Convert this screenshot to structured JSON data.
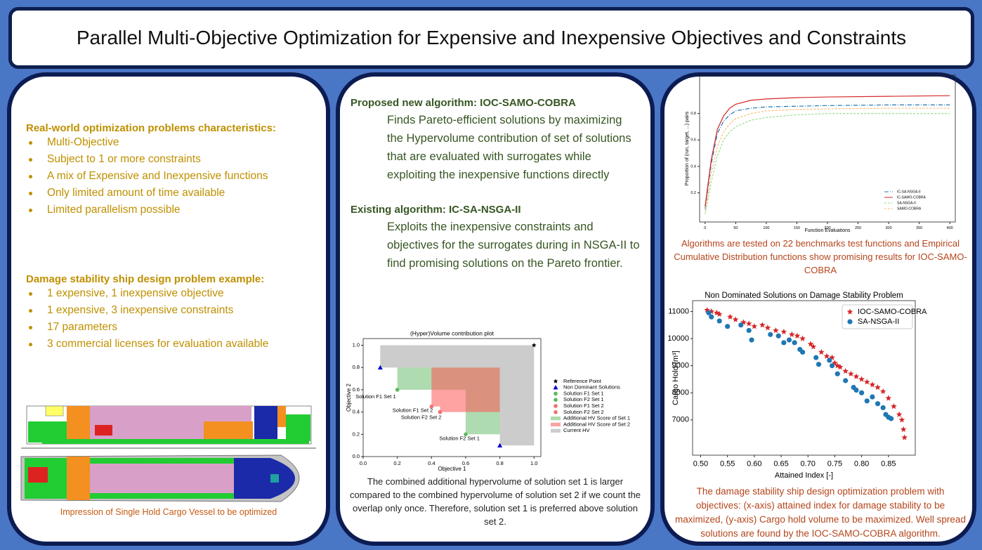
{
  "header": {
    "title": "Parallel Multi-Objective Optimization for Expensive and Inexpensive Objectives and Constraints"
  },
  "left": {
    "sections": [
      {
        "heading": "Real-world optimization problems characteristics:",
        "items": [
          "Multi-Objective",
          "Subject to 1 or more constraints",
          "A mix of Expensive and Inexpensive functions",
          "Only limited amount of time available",
          "Limited parallelism possible"
        ]
      },
      {
        "heading": "Damage stability ship design problem example:",
        "items": [
          "1 expensive, 1 inexpensive objective",
          "1 expensive, 3 inexpensive constraints",
          "17 parameters",
          "3 commercial licenses for evaluation available"
        ]
      }
    ],
    "caption": "Impression of Single Hold Cargo Vessel to be optimized"
  },
  "middle": {
    "sections": [
      {
        "heading": "Proposed new algorithm: IOC-SAMO-COBRA",
        "text": "Finds Pareto-efficient solutions by maximizing the Hypervolume contribution of set of solutions that are evaluated with surrogates while exploiting the inexpensive functions directly"
      },
      {
        "heading": "Existing algorithm: IC-SA-NSGA-II",
        "text": "Exploits the inexpensive constraints and objectives for the surrogates during in NSGA-II to find promising solutions on the Pareto frontier."
      }
    ],
    "caption": "The combined additional hypervolume of solution set 1 is larger compared to the combined hypervolume of solution set 2 if we count the overlap only once. Therefore, solution set 1 is preferred above solution set 2."
  },
  "right": {
    "captions": [
      "Algorithms are tested on 22 benchmarks test functions and Empirical Cumulative Distribution functions show promising results for IOC-SAMO-COBRA",
      "The damage stability ship design optimization problem with objectives: (x-axis) attained index for damage stability to be maximized, (y-axis) Cargo hold volume to be maximized. Well spread solutions are found by the IOC-SAMO-COBRA algorithm."
    ]
  },
  "chart_data": [
    {
      "type": "line",
      "xlabel": "Function Evaluations",
      "ylabel": "Proportion of (run, target, ...) pairs",
      "legend": "lower right",
      "x": [
        0,
        10,
        20,
        30,
        40,
        50,
        75,
        100,
        150,
        200,
        300,
        400
      ],
      "xlim": [
        -9,
        409
      ],
      "xticks": [
        0,
        50,
        100,
        150,
        200,
        250,
        300,
        350,
        400
      ],
      "ylim": [
        -0.02,
        1.09
      ],
      "yticks": [
        0.2,
        0.4,
        0.6,
        0.8
      ],
      "series": [
        {
          "name": "IC-SA-NSGA-II",
          "color": "#1f77b4",
          "linestyle": "dashdot",
          "values": [
            0.08,
            0.42,
            0.65,
            0.74,
            0.79,
            0.82,
            0.84,
            0.85,
            0.855,
            0.86,
            0.865,
            0.865
          ]
        },
        {
          "name": "IC-SAMO-COBRA",
          "color": "#d62728",
          "linestyle": "solid",
          "values": [
            0.1,
            0.45,
            0.68,
            0.78,
            0.84,
            0.87,
            0.9,
            0.91,
            0.92,
            0.925,
            0.93,
            0.935
          ]
        },
        {
          "name": "SA-NSGA-II",
          "color": "#98df8a",
          "linestyle": "dashed",
          "values": [
            0.04,
            0.28,
            0.48,
            0.6,
            0.66,
            0.7,
            0.75,
            0.77,
            0.79,
            0.8,
            0.8,
            0.8
          ]
        },
        {
          "name": "SAMO-COBRA",
          "color": "#ffbb78",
          "linestyle": "dashed",
          "values": [
            0.06,
            0.35,
            0.55,
            0.66,
            0.72,
            0.76,
            0.8,
            0.82,
            0.83,
            0.835,
            0.84,
            0.84
          ]
        }
      ]
    },
    {
      "type": "scatter",
      "title": "(Hyper)Volume contribution plot",
      "xlabel": "Objective 1",
      "ylabel": "Objective 2",
      "legend": "right",
      "xlim": [
        0,
        1.04
      ],
      "xticks": [
        {
          "value": 0,
          "label": "0.0"
        },
        0.2,
        0.4,
        0.6,
        0.8,
        {
          "value": 1,
          "label": "1.0"
        }
      ],
      "ylim": [
        0,
        1.06
      ],
      "yticks": [
        {
          "value": 0,
          "label": "0.0"
        },
        0.2,
        0.4,
        0.6,
        0.8,
        {
          "value": 1,
          "label": "1.0"
        }
      ],
      "series": [
        {
          "name": "Reference Point",
          "color": "#000000",
          "marker": "star",
          "x": [
            1
          ],
          "values": [
            1
          ]
        },
        {
          "name": "Non Dominant Solutions",
          "color": "#0000cc",
          "marker": "triangle",
          "x": [
            0.1,
            0.8
          ],
          "values": [
            0.8,
            0.1
          ]
        },
        {
          "name": "Solution F1 Set 1",
          "color": "#5cb85c",
          "marker": "circle",
          "x": [
            0.2
          ],
          "values": [
            0.6
          ]
        },
        {
          "name": "Solution F2 Set 1",
          "color": "#5cb85c",
          "marker": "circle",
          "x": [
            0.6
          ],
          "values": [
            0.2
          ]
        },
        {
          "name": "Solution F1 Set 2",
          "color": "#f07070",
          "marker": "circle",
          "x": [
            0.4
          ],
          "values": [
            0.45
          ]
        },
        {
          "name": "Solution F2 Set 2",
          "color": "#f07070",
          "marker": "circle",
          "x": [
            0.45
          ],
          "values": [
            0.4
          ]
        }
      ],
      "regions": [
        {
          "name": "Additional HV Score of Set 1",
          "color": "#4caf50",
          "alpha": 0.45,
          "rects": [
            [
              0.2,
              0.8,
              0.6,
              0.8
            ],
            [
              0.6,
              0.8,
              0.2,
              0.8
            ]
          ]
        },
        {
          "name": "Additional HV Score of Set 2",
          "color": "#ff5555",
          "alpha": 0.55,
          "rects": [
            [
              0.4,
              0.8,
              0.45,
              0.8
            ],
            [
              0.45,
              0.8,
              0.4,
              0.8
            ]
          ]
        },
        {
          "name": "Current HV",
          "color": "#cccccc",
          "alpha": 1,
          "rects": [
            [
              0.1,
              1,
              0.8,
              1
            ],
            [
              0.8,
              1,
              0.1,
              1
            ]
          ]
        }
      ]
    },
    {
      "type": "scatter",
      "title": "Non Dominated Solutions on Damage Stability Problem",
      "xlabel": "Attained Index [-]",
      "ylabel": "Cargo Hold [m³]",
      "legend": "upper right",
      "xlim": [
        0.485,
        0.9
      ],
      "xticks": [
        {
          "value": 0.5,
          "label": "0.50"
        },
        0.55,
        {
          "value": 0.6,
          "label": "0.60"
        },
        0.65,
        {
          "value": 0.7,
          "label": "0.70"
        },
        0.75,
        {
          "value": 0.8,
          "label": "0.80"
        },
        0.85
      ],
      "ylim": [
        5700,
        11400
      ],
      "yticks": [
        7000,
        8000,
        9000,
        10000,
        11000
      ],
      "series": [
        {
          "name": "IOC-SAMO-COBRA",
          "color": "#d62728",
          "marker": "star",
          "x": [
            0.512,
            0.52,
            0.53,
            0.535,
            0.555,
            0.565,
            0.58,
            0.59,
            0.6,
            0.615,
            0.625,
            0.64,
            0.655,
            0.67,
            0.68,
            0.69,
            0.705,
            0.71,
            0.725,
            0.735,
            0.745,
            0.75,
            0.755,
            0.76,
            0.77,
            0.78,
            0.79,
            0.8,
            0.81,
            0.82,
            0.83,
            0.84,
            0.85,
            0.86,
            0.87,
            0.875,
            0.878,
            0.88
          ],
          "values": [
            11050,
            11000,
            10950,
            10900,
            10800,
            10700,
            10600,
            10550,
            10450,
            10500,
            10400,
            10300,
            10250,
            10150,
            10100,
            10000,
            9800,
            9700,
            9500,
            9350,
            9300,
            9100,
            9000,
            8950,
            8800,
            8700,
            8600,
            8500,
            8400,
            8300,
            8200,
            8050,
            7800,
            7500,
            7200,
            7000,
            6650,
            6350
          ]
        },
        {
          "name": "SA-NSGA-II",
          "color": "#1f77b4",
          "marker": "circle",
          "x": [
            0.515,
            0.52,
            0.535,
            0.55,
            0.575,
            0.59,
            0.595,
            0.63,
            0.645,
            0.655,
            0.665,
            0.675,
            0.685,
            0.69,
            0.715,
            0.72,
            0.74,
            0.745,
            0.755,
            0.77,
            0.785,
            0.79,
            0.8,
            0.81,
            0.82,
            0.83,
            0.84,
            0.845,
            0.85,
            0.855
          ],
          "values": [
            10950,
            10800,
            10650,
            10450,
            10500,
            10300,
            9950,
            10150,
            10100,
            9850,
            9950,
            9850,
            9600,
            9500,
            9300,
            9050,
            9200,
            9000,
            8700,
            8450,
            8200,
            8100,
            8000,
            7700,
            7850,
            7600,
            7450,
            7200,
            7100,
            7050
          ]
        }
      ]
    }
  ]
}
